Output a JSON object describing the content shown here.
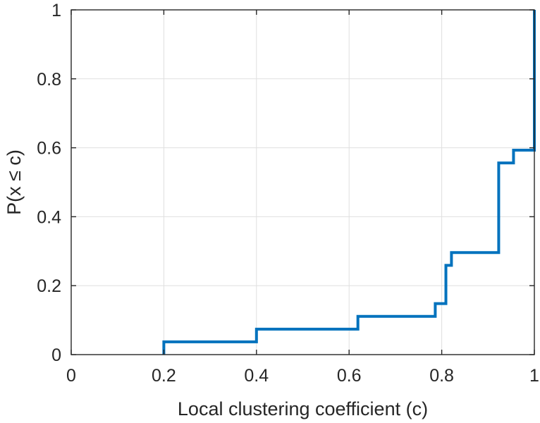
{
  "chart_data": {
    "type": "line",
    "subtype": "empirical-cdf-step",
    "xlabel": "Local clustering coefficient (c)",
    "ylabel": "P(x ≤ c)",
    "xlim": [
      0,
      1
    ],
    "ylim": [
      0,
      1
    ],
    "xticks": [
      "0",
      "0.2",
      "0.4",
      "0.6",
      "0.8",
      "1"
    ],
    "yticks": [
      "0",
      "0.2",
      "0.4",
      "0.6",
      "0.8",
      "1"
    ],
    "grid": true,
    "series": [
      {
        "color": "#0072bd",
        "steps": [
          {
            "x": 0.2,
            "y": 0.037
          },
          {
            "x": 0.4,
            "y": 0.074
          },
          {
            "x": 0.619,
            "y": 0.111
          },
          {
            "x": 0.786,
            "y": 0.148
          },
          {
            "x": 0.809,
            "y": 0.259
          },
          {
            "x": 0.821,
            "y": 0.296
          },
          {
            "x": 0.923,
            "y": 0.556
          },
          {
            "x": 0.955,
            "y": 0.593
          },
          {
            "x": 1.0,
            "y": 1.0
          }
        ]
      }
    ]
  }
}
